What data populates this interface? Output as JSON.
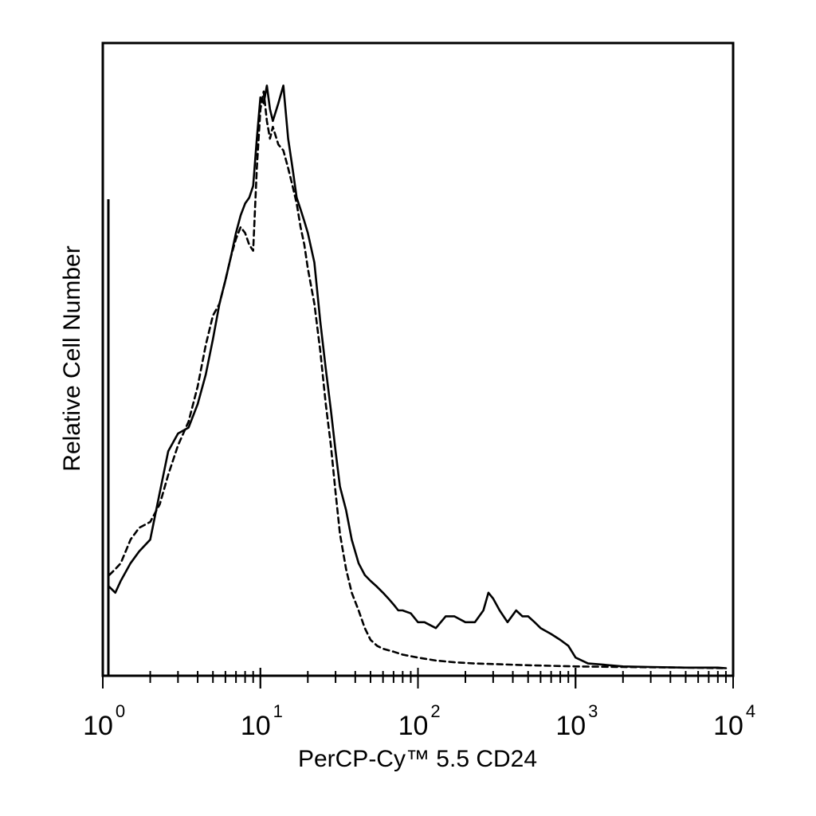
{
  "chart_data": {
    "type": "line",
    "xlabel": "PerCP-Cy™ 5.5 CD24",
    "ylabel": "Relative Cell Number",
    "x_scale": "log",
    "xlim": [
      1,
      10000
    ],
    "ylim": [
      0,
      100
    ],
    "x_ticks": [
      {
        "base": "10",
        "exp": "0"
      },
      {
        "base": "10",
        "exp": "1"
      },
      {
        "base": "10",
        "exp": "2"
      },
      {
        "base": "10",
        "exp": "3"
      },
      {
        "base": "10",
        "exp": "4"
      }
    ],
    "grid": false,
    "series": [
      {
        "style": "solid",
        "x": [
          1.1,
          1.2,
          1.3,
          1.5,
          1.7,
          2.0,
          2.3,
          2.6,
          3.0,
          3.5,
          4.0,
          4.5,
          5.0,
          5.5,
          6.0,
          6.5,
          7.0,
          7.5,
          8.0,
          8.5,
          9.0,
          9.5,
          10,
          10.5,
          11,
          11.5,
          12,
          13,
          14,
          15,
          16,
          17,
          18,
          19,
          20,
          22,
          24,
          26,
          28,
          30,
          32,
          35,
          38,
          42,
          46,
          50,
          55,
          60,
          65,
          70,
          75,
          80,
          90,
          100,
          110,
          130,
          150,
          170,
          200,
          230,
          260,
          280,
          300,
          330,
          370,
          420,
          460,
          500,
          550,
          600,
          700,
          800,
          900,
          1000,
          1200,
          1500,
          2000,
          3000,
          5000,
          8000,
          9000
        ],
        "y": [
          14,
          13,
          15,
          18,
          20,
          22,
          30,
          37,
          40,
          41,
          45,
          50,
          56,
          62,
          66,
          70,
          74,
          77,
          79,
          80,
          82,
          90,
          97,
          96,
          99,
          95,
          93,
          96,
          99,
          90,
          85,
          80,
          78,
          76,
          74,
          69,
          59,
          51,
          44,
          37,
          31,
          27,
          22,
          18,
          16,
          15,
          14,
          13,
          12,
          11,
          10,
          10,
          9.5,
          8,
          8,
          7,
          9,
          9,
          8,
          8,
          10,
          13,
          12,
          10,
          8,
          10,
          9,
          9,
          8,
          7,
          6,
          5,
          4,
          2,
          1,
          0.8,
          0.5,
          0.4,
          0.3,
          0.3,
          0.2
        ]
      },
      {
        "style": "dashed",
        "x": [
          1.1,
          1.2,
          1.3,
          1.5,
          1.7,
          2.0,
          2.3,
          2.6,
          3.0,
          3.5,
          4.0,
          4.5,
          5.0,
          5.5,
          6.0,
          6.5,
          7.0,
          7.5,
          8.0,
          8.5,
          9.0,
          9.5,
          10,
          10.5,
          11,
          11.5,
          12,
          13,
          14,
          15,
          16,
          17,
          18,
          19,
          20,
          22,
          24,
          26,
          28,
          30,
          32,
          35,
          38,
          42,
          46,
          50,
          55,
          60,
          70,
          80,
          100,
          130,
          170,
          230,
          300,
          500,
          1000,
          2000,
          5000,
          9000
        ],
        "y": [
          16,
          17,
          18,
          22,
          24,
          25,
          28,
          33,
          38,
          42,
          48,
          55,
          60,
          62,
          66,
          70,
          73,
          75,
          74,
          72,
          71,
          85,
          95,
          98,
          93,
          90,
          92,
          89,
          88,
          85,
          82,
          79,
          75,
          72,
          68,
          62,
          54,
          45,
          38,
          30,
          23,
          17,
          13,
          10,
          7,
          5,
          4,
          3.5,
          3,
          2.5,
          2,
          1.5,
          1.2,
          1,
          0.9,
          0.7,
          0.5,
          0.4,
          0.3,
          0.2
        ]
      }
    ]
  }
}
